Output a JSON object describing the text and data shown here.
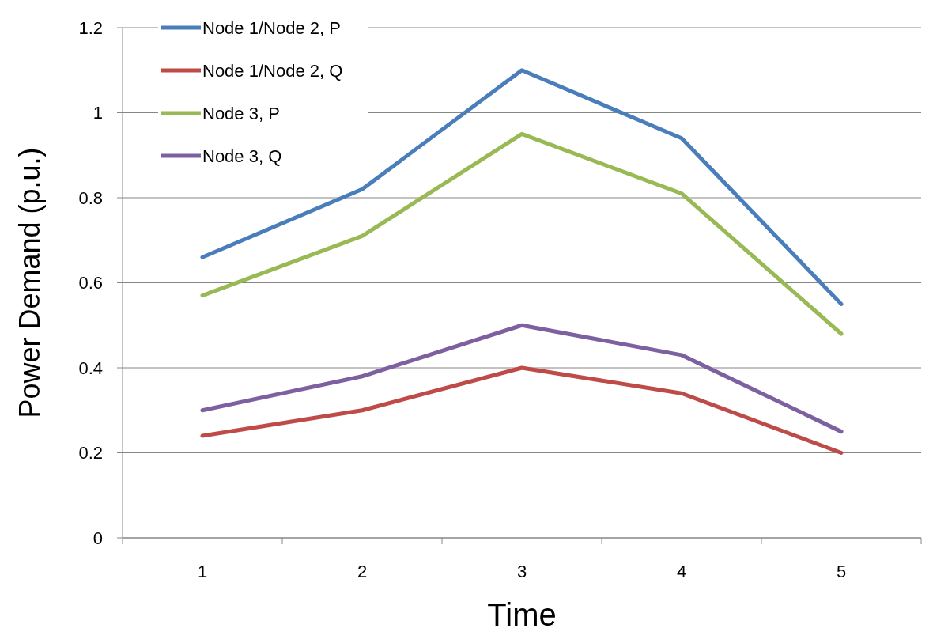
{
  "chart_data": {
    "type": "line",
    "xlabel": "Time",
    "ylabel": "Power Demand (p.u.)",
    "categories": [
      "1",
      "2",
      "3",
      "4",
      "5"
    ],
    "series": [
      {
        "name": "Node 1/Node 2, P",
        "color": "#4a7ebb",
        "values": [
          0.66,
          0.82,
          1.1,
          0.94,
          0.55
        ]
      },
      {
        "name": "Node 1/Node 2, Q",
        "color": "#be4b48",
        "values": [
          0.24,
          0.3,
          0.4,
          0.34,
          0.2
        ]
      },
      {
        "name": "Node 3, P",
        "color": "#98b954",
        "values": [
          0.57,
          0.71,
          0.95,
          0.81,
          0.48
        ]
      },
      {
        "name": "Node 3, Q",
        "color": "#7d60a0",
        "values": [
          0.3,
          0.38,
          0.5,
          0.43,
          0.25
        ]
      }
    ],
    "ylim": [
      0,
      1.2
    ],
    "yticks": [
      0,
      0.2,
      0.4,
      0.6,
      0.8,
      1,
      1.2
    ],
    "grid": "y",
    "legend": "top left",
    "marker": "none",
    "line_style": "solid"
  }
}
